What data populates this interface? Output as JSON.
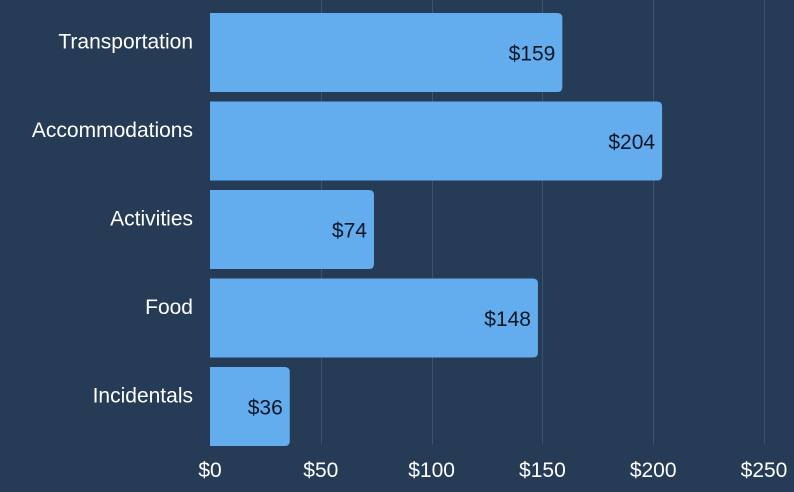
{
  "colors": {
    "background": "#263b56",
    "bar": "#63aced",
    "grid": "#3c5270",
    "label_text": "#ffffff",
    "value_text": "#0d1724"
  },
  "chart_data": {
    "type": "bar",
    "orientation": "horizontal",
    "categories": [
      "Transportation",
      "Accommodations",
      "Activities",
      "Food",
      "Incidentals"
    ],
    "values": [
      159,
      204,
      74,
      148,
      36
    ],
    "value_labels": [
      "$159",
      "$204",
      "$74",
      "$148",
      "$36"
    ],
    "xlim": [
      0,
      250
    ],
    "x_ticks": [
      0,
      50,
      100,
      150,
      200,
      250
    ],
    "x_tick_labels": [
      "$0",
      "$50",
      "$100",
      "$150",
      "$200",
      "$250"
    ],
    "grid": "vertical",
    "title": "",
    "xlabel": "",
    "ylabel": ""
  }
}
